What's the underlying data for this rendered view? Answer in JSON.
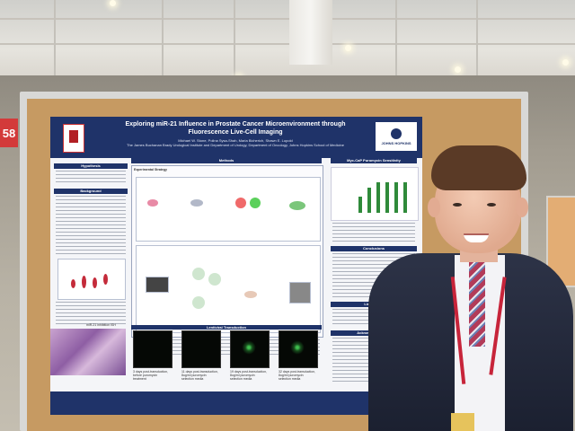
{
  "poster": {
    "title": "Exploring miR-21 Influence in Prostate Cancer Microenvironment through Fluorescence Live-Cell Imaging",
    "authors": "Michael W. Stone, Polina Sysa-Shah, Maria Bicherich, Shawn E. Lupold",
    "affiliation": "The James Buchanan Brady Urological Institute and Department of Urology, Department of Oncology, Johns Hopkins School of Medicine",
    "logo_right": "JOHNS HOPKINS",
    "sections": {
      "hypothesis": "Hypothesis",
      "background": "Background",
      "methods": "Methods",
      "experimental_strategy": "Experimental Strategy",
      "sensitivity": "Myc-CaP Puromycin Sensitivity",
      "lentiviral": "Lentiviral Transduction",
      "conclusions": "Conclusions",
      "limitations": "Limitations",
      "acknowledgements": "Acknowledgements"
    },
    "captions": {
      "micro_1": "3 days post-transduction, before puromycin treatment",
      "micro_2": "11 days post-transduction, 8ug/ml puromycin selection media",
      "micro_3": "19 days post-transduction, 8ug/ml puromycin selection media",
      "micro_4": "32 days post-transduction, 8ug/ml puromycin selection media"
    },
    "histology_caption": "miR-21 inhibition ISH"
  },
  "board": {
    "number_tag": "58"
  },
  "colors": {
    "poster_navy": "#1f3369",
    "cork": "#c69a62",
    "tag_red": "#d33a3a",
    "tie_red": "#b23b59",
    "lanyard": "#c7243a"
  }
}
